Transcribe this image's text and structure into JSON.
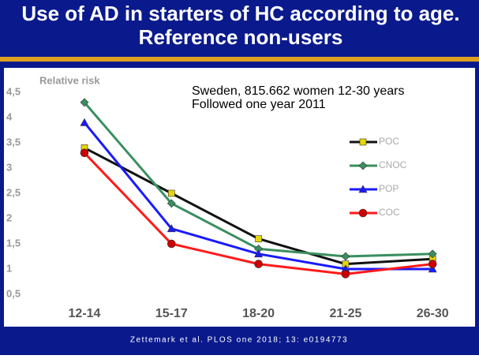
{
  "title": "Use of AD in starters of HC according to age. Reference non-users",
  "footer": "Zettemark et al. PLOS one 2018; 13: e0194773",
  "chart_data": {
    "type": "line",
    "y_label": "Relative risk",
    "annotations": [
      "Sweden, 815.662 women 12-30 years",
      "Followed one year 2011"
    ],
    "categories": [
      "12-14",
      "15-17",
      "18-20",
      "21-25",
      "26-30"
    ],
    "series": [
      {
        "name": "POC",
        "color": "#111111",
        "marker_color": "#e6d700",
        "marker": "square",
        "values": [
          3.4,
          2.5,
          1.6,
          1.1,
          1.2
        ]
      },
      {
        "name": "CNOC",
        "color": "#3a8f5f",
        "marker_color": "#3a8f5f",
        "marker": "diamond",
        "values": [
          4.3,
          2.3,
          1.4,
          1.25,
          1.3
        ]
      },
      {
        "name": "POP",
        "color": "#1a1aff",
        "marker_color": "#1a1aff",
        "marker": "triangle",
        "values": [
          3.9,
          1.8,
          1.3,
          1.0,
          1.0
        ]
      },
      {
        "name": "COC",
        "color": "#ff1a1a",
        "marker_color": "#cc0000",
        "marker": "circle",
        "values": [
          3.3,
          1.5,
          1.1,
          0.9,
          1.1
        ]
      }
    ],
    "ylim": [
      0.5,
      4.5
    ],
    "yticks": [
      {
        "value": 0.5,
        "label": "0,5"
      },
      1,
      {
        "value": 1.5,
        "label": "1,5"
      },
      2,
      {
        "value": 2.5,
        "label": "2,5"
      },
      3,
      {
        "value": 3.5,
        "label": "3,5"
      },
      4,
      {
        "value": 4.5,
        "label": "4,5"
      }
    ],
    "grid": false,
    "legend": "right"
  }
}
